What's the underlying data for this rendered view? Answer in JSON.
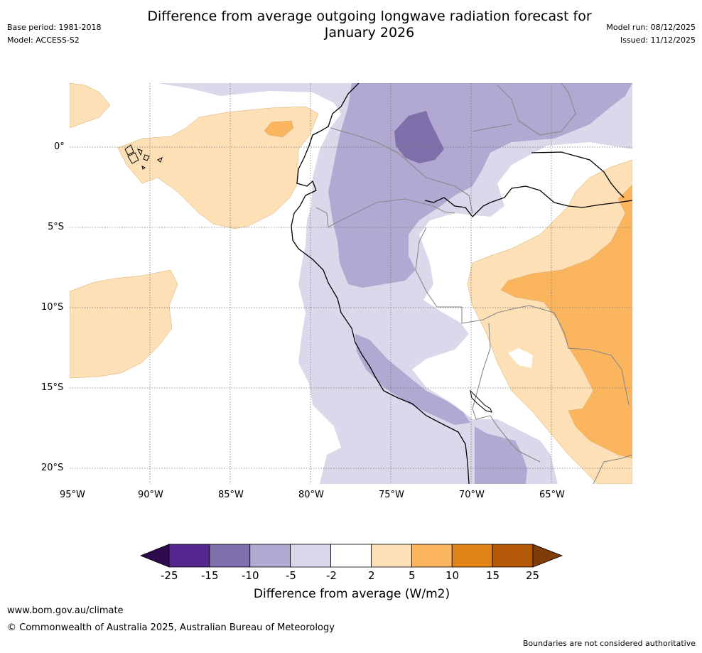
{
  "header": {
    "title_line1": "Difference from average outgoing longwave radiation forecast for",
    "title_line2": "January 2026",
    "base_period": "Base period: 1981-2018",
    "model": "Model: ACCESS-S2",
    "model_run": "Model run: 08/12/2025",
    "issued": "Issued: 11/12/2025"
  },
  "map": {
    "lon_labels": [
      "95°W",
      "90°W",
      "85°W",
      "80°W",
      "75°W",
      "70°W",
      "65°W"
    ],
    "lat_labels": [
      "0°",
      "5°S",
      "10°S",
      "15°S",
      "20°S"
    ]
  },
  "colorbar": {
    "title": "Difference from average (W/m2)",
    "tick_labels": [
      "-25",
      "-15",
      "-10",
      "-5",
      "-2",
      "2",
      "5",
      "10",
      "15",
      "25"
    ],
    "colors": [
      "#2d0b4e",
      "#54278f",
      "#7f6fab",
      "#b1a9d1",
      "#d9d9eb",
      "#ffffff",
      "#fde0b6",
      "#fbb55f",
      "#e08214",
      "#b35806",
      "#7f3b08"
    ]
  },
  "footer": {
    "url": "www.bom.gov.au/climate",
    "copyright": "© Commonwealth of Australia 2025, Australian Bureau of Meteorology",
    "disclaimer": "Boundaries are not considered authoritative"
  }
}
